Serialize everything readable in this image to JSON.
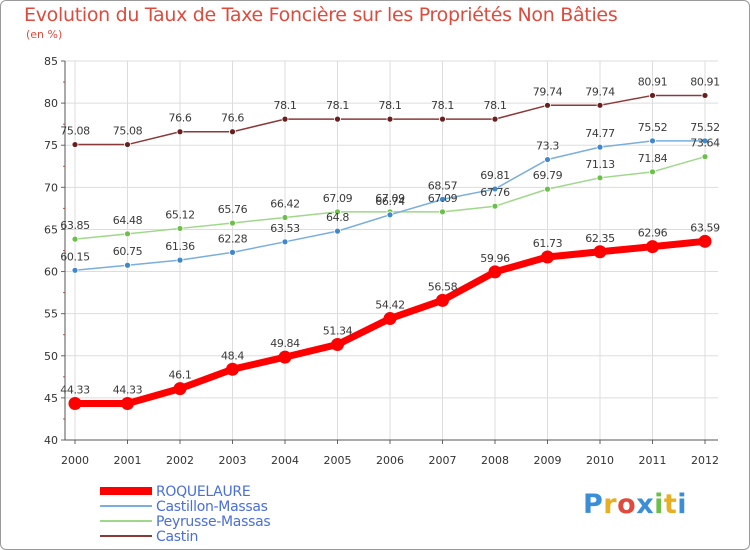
{
  "title": "Evolution du Taux de Taxe Foncière sur les Propriétés Non Bâties",
  "unit_label": "(en %)",
  "logo": {
    "text": "Proxiti",
    "letter_colors": [
      "#3a8ed8",
      "#e8b020",
      "#e04a3c",
      "#3a8ed8",
      "#6cc04a",
      "#e8b020",
      "#3a8ed8"
    ]
  },
  "chart_data": {
    "type": "line",
    "title": "Evolution du Taux de Taxe Foncière sur les Propriétés Non Bâties",
    "ylabel": "(en %)",
    "xlabel": "",
    "categories": [
      "2000",
      "2001",
      "2002",
      "2003",
      "2004",
      "2005",
      "2006",
      "2007",
      "2008",
      "2009",
      "2010",
      "2011",
      "2012"
    ],
    "ylim": [
      40,
      85
    ],
    "yticks": [
      40,
      45,
      50,
      55,
      60,
      65,
      70,
      75,
      80,
      85
    ],
    "grid": true,
    "series": [
      {
        "name": "ROQUELAURE",
        "color": "#ff0000",
        "marker_color": "#ff0000",
        "emphasis": true,
        "values": [
          44.33,
          44.33,
          46.1,
          48.4,
          49.84,
          51.34,
          54.42,
          56.58,
          59.96,
          61.73,
          62.35,
          62.96,
          63.59
        ],
        "labels": [
          "44.33",
          "44.33",
          "46.1",
          "48.4",
          "49.84",
          "51.34",
          "54.42",
          "56.58",
          "59.96",
          "61.73",
          "62.35",
          "62.96",
          "63.59"
        ]
      },
      {
        "name": "Castillon-Massas",
        "color": "#7aaedc",
        "marker_color": "#3f88cc",
        "emphasis": false,
        "values": [
          60.15,
          60.75,
          61.36,
          62.28,
          63.53,
          64.8,
          66.74,
          68.57,
          69.81,
          73.3,
          74.77,
          75.52,
          75.52
        ],
        "labels": [
          "60.15",
          "60.75",
          "61.36",
          "62.28",
          "63.53",
          "64.8",
          "66.74",
          "68.57",
          "69.81",
          "73.3",
          "74.77",
          "75.52",
          "75.52"
        ]
      },
      {
        "name": "Peyrusse-Massas",
        "color": "#9fd88a",
        "marker_color": "#6cc04a",
        "emphasis": false,
        "values": [
          63.85,
          64.48,
          65.12,
          65.76,
          66.42,
          67.09,
          67.09,
          67.09,
          67.76,
          69.79,
          71.13,
          71.84,
          73.64
        ],
        "labels": [
          "63.85",
          "64.48",
          "65.12",
          "65.76",
          "66.42",
          "67.09",
          "67.09",
          "67.09",
          "67.76",
          "69.79",
          "71.13",
          "71.84",
          "73.64"
        ]
      },
      {
        "name": "Castin",
        "color": "#8b3a3a",
        "marker_color": "#6a1f1f",
        "emphasis": false,
        "values": [
          75.08,
          75.08,
          76.6,
          76.6,
          78.1,
          78.1,
          78.1,
          78.1,
          78.1,
          79.74,
          79.74,
          80.91,
          80.91
        ],
        "labels": [
          "75.08",
          "75.08",
          "76.6",
          "76.6",
          "78.1",
          "78.1",
          "78.1",
          "78.1",
          "78.1",
          "79.74",
          "79.74",
          "80.91",
          "80.91"
        ]
      }
    ],
    "legend_position": "bottom-left"
  }
}
